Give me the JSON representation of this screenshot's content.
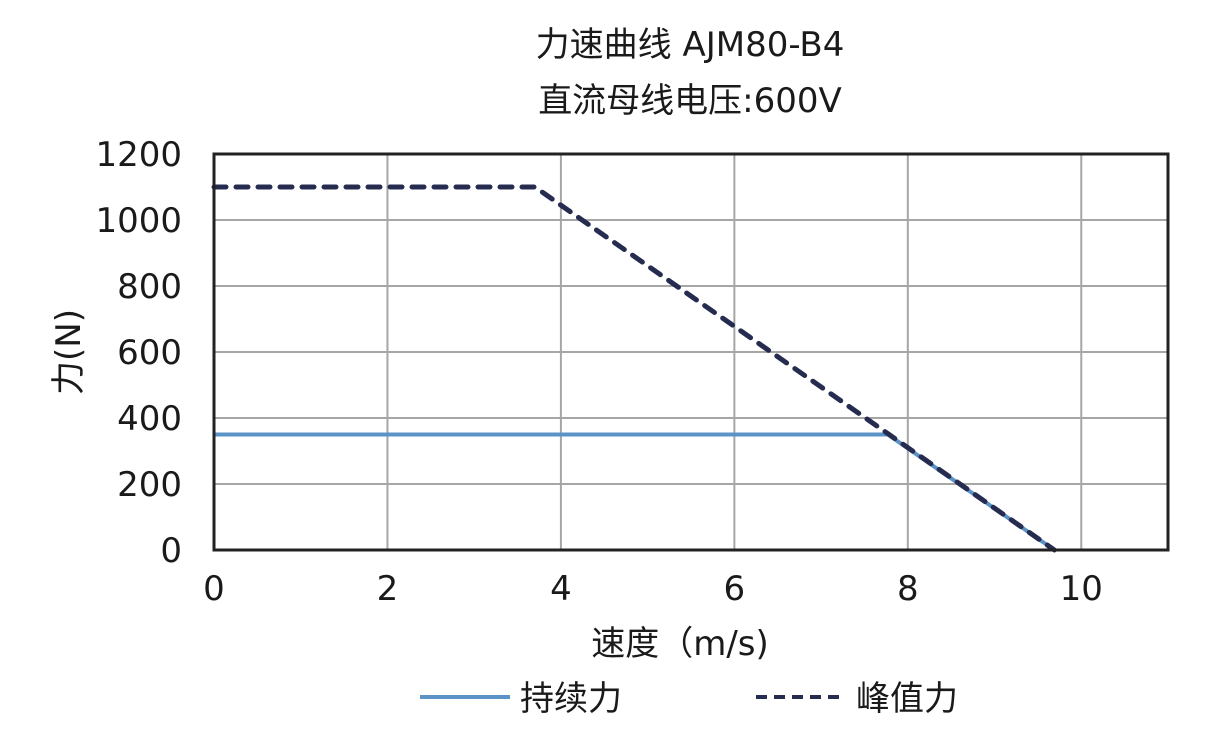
{
  "chart_data": {
    "type": "line",
    "title": "力速曲线 AJM80-B4",
    "subtitle": "直流母线电压:600V",
    "xlabel": "速度（m/s)",
    "ylabel": "力(N)",
    "xlim": [
      0,
      11
    ],
    "ylim": [
      0,
      1200
    ],
    "xticks": [
      0,
      2,
      4,
      6,
      8,
      10
    ],
    "yticks": [
      0,
      200,
      400,
      600,
      800,
      1000,
      1200
    ],
    "grid": true,
    "legend_position": "bottom",
    "series": [
      {
        "name": "持续力",
        "color": "#5b93c7",
        "dash": "solid",
        "x": [
          0,
          7.77,
          9.69
        ],
        "y": [
          350,
          350,
          0
        ]
      },
      {
        "name": "峰值力",
        "color": "#262c50",
        "dash": "dashed",
        "x": [
          0,
          3.7,
          9.69
        ],
        "y": [
          1100,
          1100,
          0
        ]
      }
    ]
  }
}
